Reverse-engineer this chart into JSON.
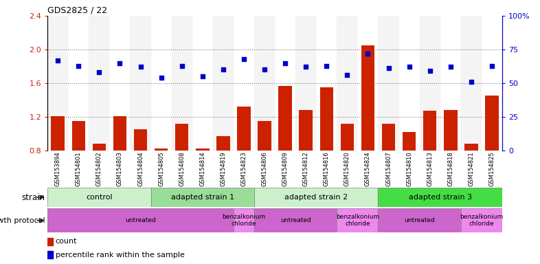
{
  "title": "GDS2825 / 22",
  "samples": [
    "GSM153894",
    "GSM154801",
    "GSM154802",
    "GSM154803",
    "GSM154804",
    "GSM154805",
    "GSM154808",
    "GSM154814",
    "GSM154819",
    "GSM154823",
    "GSM154806",
    "GSM154809",
    "GSM154812",
    "GSM154816",
    "GSM154820",
    "GSM154824",
    "GSM154807",
    "GSM154810",
    "GSM154813",
    "GSM154818",
    "GSM154821",
    "GSM154825"
  ],
  "counts": [
    1.21,
    1.15,
    0.88,
    1.21,
    1.05,
    0.82,
    1.12,
    0.82,
    0.97,
    1.32,
    1.15,
    1.57,
    1.28,
    1.55,
    1.12,
    2.05,
    1.12,
    1.02,
    1.27,
    1.28,
    0.88,
    1.45
  ],
  "percentile": [
    67,
    63,
    58,
    65,
    62,
    54,
    63,
    55,
    60,
    68,
    60,
    65,
    62,
    63,
    56,
    72,
    61,
    62,
    59,
    62,
    51,
    63
  ],
  "ylim_left": [
    0.8,
    2.4
  ],
  "ylim_right": [
    0,
    100
  ],
  "yticks_left": [
    0.8,
    1.2,
    1.6,
    2.0,
    2.4
  ],
  "yticks_right": [
    0,
    25,
    50,
    75,
    100
  ],
  "ytick_labels_right": [
    "0",
    "25",
    "50",
    "75",
    "100%"
  ],
  "bar_color": "#cc2200",
  "dot_color": "#0000cc",
  "grid_linestyle": ":",
  "strain_labels": [
    "control",
    "adapted strain 1",
    "adapted strain 2",
    "adapted strain 3"
  ],
  "strain_starts": [
    0,
    5,
    10,
    16
  ],
  "strain_ends": [
    5,
    10,
    16,
    22
  ],
  "strain_colors": [
    "#ccf0cc",
    "#99dd99",
    "#ccf0cc",
    "#44dd44"
  ],
  "protocol_labels": [
    "untreated",
    "benzalkonium\nchloride",
    "untreated",
    "benzalkonium\nchloride",
    "untreated",
    "benzalkonium\nchloride"
  ],
  "protocol_starts": [
    0,
    9,
    10,
    14,
    16,
    20
  ],
  "protocol_ends": [
    9,
    10,
    14,
    16,
    20,
    22
  ],
  "protocol_colors_untreated": "#cc66cc",
  "protocol_colors_benz": "#ee88ee",
  "legend_count_label": "count",
  "legend_pct_label": "percentile rank within the sample"
}
